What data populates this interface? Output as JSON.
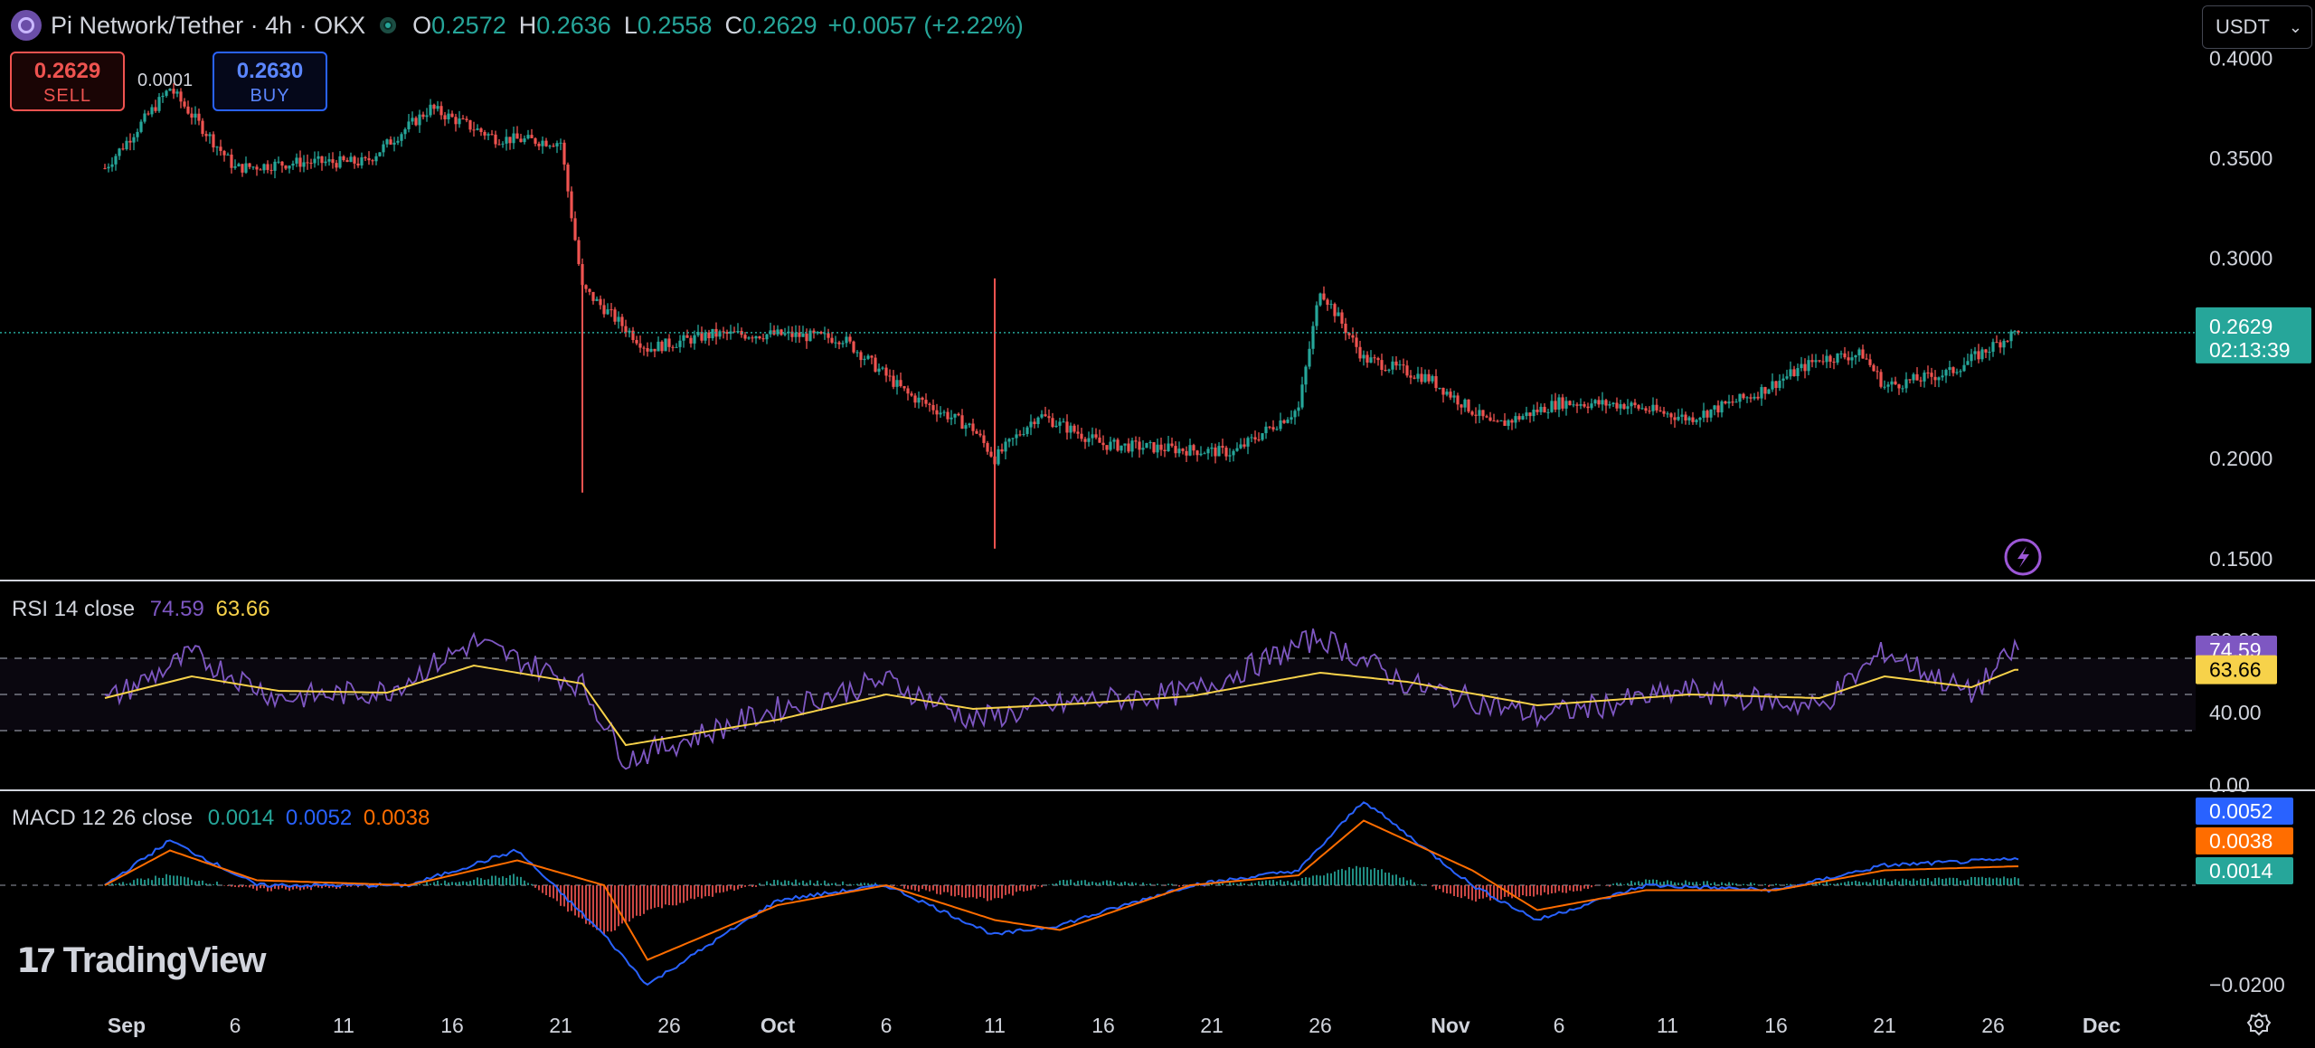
{
  "header": {
    "title": "Pi Network/Tether · 4h · OKX",
    "ohlc": [
      {
        "label": "O",
        "value": "0.2572"
      },
      {
        "label": "H",
        "value": "0.2636"
      },
      {
        "label": "L",
        "value": "0.2558"
      },
      {
        "label": "C",
        "value": "0.2629"
      }
    ],
    "change": "+0.0057 (+2.22%)"
  },
  "trade": {
    "sell_price": "0.2629",
    "sell_label": "SELL",
    "spread": "0.0001",
    "buy_price": "0.2630",
    "buy_label": "BUY"
  },
  "currency": "USDT",
  "price_axis": {
    "ticks": [
      "0.4000",
      "0.3500",
      "0.3000",
      "0.2000",
      "0.1500"
    ],
    "last_price": "0.2629",
    "countdown": "02:13:39"
  },
  "rsi": {
    "title": "RSI 14 close",
    "value": "74.59",
    "ma_value": "63.66",
    "ticks": [
      "80.00",
      "40.00",
      "0.00"
    ]
  },
  "macd": {
    "title": "MACD 12 26 close",
    "hist": "0.0014",
    "macd": "0.0052",
    "signal": "0.0038",
    "ticks": [
      "−0.0200"
    ]
  },
  "time_axis": [
    "Sep",
    "6",
    "11",
    "16",
    "21",
    "26",
    "Oct",
    "6",
    "11",
    "16",
    "21",
    "26",
    "Nov",
    "6",
    "11",
    "16",
    "21",
    "26",
    "Dec"
  ],
  "brand": "TradingView",
  "colors": {
    "up": "#26a69a",
    "down": "#ef5350",
    "rsi": "#7e57c2",
    "rsi_ma": "#f7d24a",
    "macd": "#2962ff",
    "signal": "#ff6d00"
  },
  "chart_data": [
    {
      "type": "candlestick",
      "title": "Pi Network/Tether · 4h · OKX",
      "x": [
        "Aug 31",
        "Sep 3",
        "Sep 6",
        "Sep 9",
        "Sep 12",
        "Sep 15",
        "Sep 18",
        "Sep 21",
        "Sep 22",
        "Sep 25",
        "Sep 28",
        "Oct 1",
        "Oct 4",
        "Oct 7",
        "Oct 10",
        "Oct 11",
        "Oct 13",
        "Oct 16",
        "Oct 19",
        "Oct 22",
        "Oct 25",
        "Oct 26",
        "Oct 28",
        "Oct 31",
        "Nov 3",
        "Nov 6",
        "Nov 9",
        "Nov 12",
        "Nov 15",
        "Nov 18",
        "Nov 20",
        "Nov 21",
        "Nov 24",
        "Nov 27"
      ],
      "close": [
        0.345,
        0.385,
        0.345,
        0.348,
        0.348,
        0.375,
        0.36,
        0.358,
        0.285,
        0.255,
        0.262,
        0.262,
        0.26,
        0.232,
        0.215,
        0.2,
        0.222,
        0.207,
        0.205,
        0.203,
        0.225,
        0.285,
        0.25,
        0.24,
        0.216,
        0.228,
        0.227,
        0.22,
        0.232,
        0.25,
        0.252,
        0.236,
        0.243,
        0.2629
      ],
      "ylim": [
        0.14,
        0.42
      ]
    },
    {
      "type": "line",
      "title": "RSI 14 close",
      "x": [
        "Aug 31",
        "Sep 4",
        "Sep 8",
        "Sep 13",
        "Sep 17",
        "Sep 22",
        "Sep 24",
        "Oct 1",
        "Oct 6",
        "Oct 10",
        "Oct 15",
        "Oct 20",
        "Oct 26",
        "Oct 30",
        "Nov 5",
        "Nov 12",
        "Nov 18",
        "Nov 21",
        "Nov 25",
        "Nov 27"
      ],
      "series": [
        {
          "name": "RSI",
          "values": [
            46,
            72,
            48,
            52,
            79,
            55,
            14,
            42,
            58,
            36,
            46,
            51,
            82,
            56,
            38,
            52,
            43,
            74,
            50,
            74.59
          ]
        },
        {
          "name": "RSI-based MA",
          "values": [
            48,
            60,
            52,
            51,
            66,
            56,
            22,
            36,
            50,
            42,
            45,
            49,
            62,
            57,
            44,
            50,
            48,
            60,
            54,
            63.66
          ]
        }
      ],
      "ylim": [
        0,
        100
      ]
    },
    {
      "type": "line",
      "title": "MACD 12 26 close",
      "x": [
        "Aug 31",
        "Sep 3",
        "Sep 7",
        "Sep 14",
        "Sep 19",
        "Sep 23",
        "Sep 25",
        "Oct 1",
        "Oct 6",
        "Oct 11",
        "Oct 14",
        "Oct 20",
        "Oct 25",
        "Oct 28",
        "Nov 2",
        "Nov 5",
        "Nov 10",
        "Nov 16",
        "Nov 21",
        "Nov 27"
      ],
      "series": [
        {
          "name": "MACD",
          "values": [
            0.0,
            0.009,
            0.0,
            0.0,
            0.007,
            -0.01,
            -0.02,
            -0.003,
            0.0,
            -0.01,
            -0.008,
            0.0,
            0.003,
            0.017,
            0.0,
            -0.007,
            0.0,
            -0.001,
            0.004,
            0.0052
          ]
        },
        {
          "name": "Signal",
          "values": [
            0.0,
            0.007,
            0.001,
            0.0,
            0.005,
            0.0,
            -0.015,
            -0.004,
            0.0,
            -0.007,
            -0.009,
            0.0,
            0.002,
            0.013,
            0.003,
            -0.005,
            -0.001,
            -0.001,
            0.003,
            0.0038
          ]
        }
      ],
      "ylim": [
        -0.022,
        0.018
      ]
    }
  ]
}
